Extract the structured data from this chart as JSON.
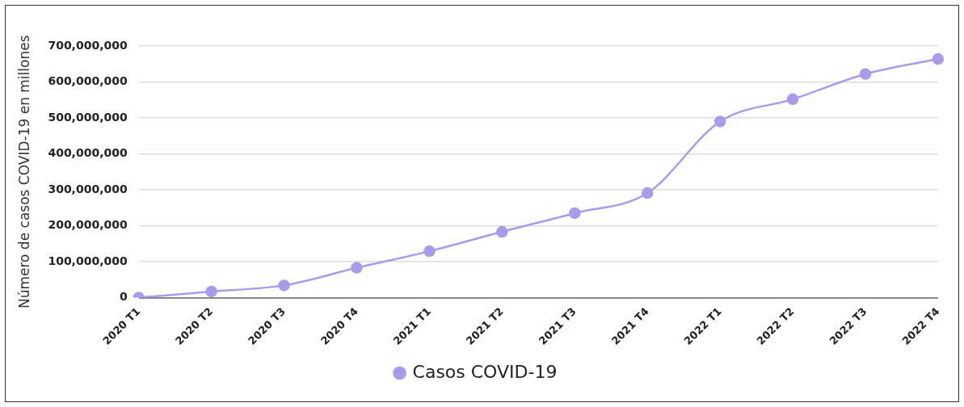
{
  "chart_data": {
    "type": "line",
    "ylabel": "Número de casos COVID-19 en millones",
    "categories": [
      "2020 T1",
      "2020 T2",
      "2020 T3",
      "2020 T4",
      "2021 T1",
      "2021 T2",
      "2021 T3",
      "2021 T4",
      "2022 T1",
      "2022 T2",
      "2022 T3",
      "2022 T4"
    ],
    "series": [
      {
        "name": "Casos COVID-19",
        "color": "#a99bea",
        "values": [
          0,
          17000000,
          34000000,
          83000000,
          129000000,
          183000000,
          235000000,
          291000000,
          490000000,
          552000000,
          622000000,
          664000000
        ]
      }
    ],
    "ylim": [
      0,
      700000000
    ],
    "yticks": [
      0,
      {
        "value": 100000000,
        "label": "100,000,000"
      },
      {
        "value": 200000000,
        "label": "200,000,000"
      },
      {
        "value": 300000000,
        "label": "300,000,000"
      },
      {
        "value": 400000000,
        "label": "400,000,000"
      },
      {
        "value": 500000000,
        "label": "500,000,000"
      },
      {
        "value": 600000000,
        "label": "600,000,000"
      },
      {
        "value": 700000000,
        "label": "700,000,000"
      }
    ],
    "grid": "y",
    "legend": "bottom",
    "marker": "circle",
    "line_style": "solid"
  }
}
